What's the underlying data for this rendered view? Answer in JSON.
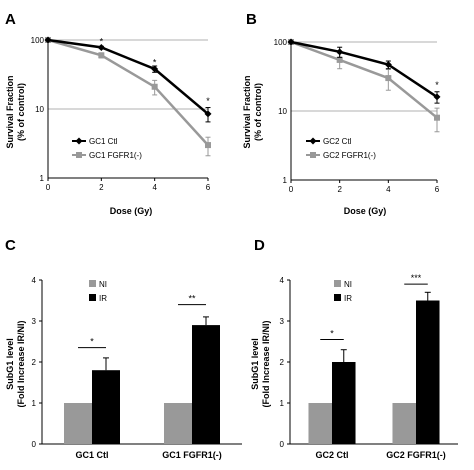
{
  "chart_data": [
    {
      "panel": "A",
      "type": "line",
      "yscale": "log",
      "x": [
        0,
        2,
        4,
        6
      ],
      "xticks": [
        0,
        2,
        4,
        6
      ],
      "xlim": [
        0,
        6
      ],
      "yticks": [
        1,
        10,
        100
      ],
      "ylim": [
        1,
        100
      ],
      "xlabel": "Dose (Gy)",
      "ylabel_line1": "Survival Fraction",
      "ylabel_line2": "(% of control)",
      "legend_position": "bottom-left",
      "series": [
        {
          "name": "GC1 Ctl",
          "color": "#000000",
          "marker": "diamond",
          "values": [
            100,
            78,
            38,
            8.5
          ],
          "errors": [
            0,
            3,
            4,
            2
          ]
        },
        {
          "name": "GC1 FGFR1(-)",
          "color": "#999999",
          "marker": "square",
          "values": [
            100,
            60,
            21,
            3.0
          ],
          "errors": [
            0,
            5,
            5,
            0.9
          ]
        }
      ],
      "annotations": [
        {
          "x": 2,
          "y": 95,
          "text": "*"
        },
        {
          "x": 4,
          "y": 47,
          "text": "*"
        },
        {
          "x": 6,
          "y": 13,
          "text": "*"
        }
      ]
    },
    {
      "panel": "B",
      "type": "line",
      "yscale": "log",
      "x": [
        0,
        2,
        4,
        6
      ],
      "xticks": [
        0,
        2,
        4,
        6
      ],
      "xlim": [
        0,
        6
      ],
      "yticks": [
        1,
        10,
        100
      ],
      "ylim": [
        1,
        100
      ],
      "xlabel": "Dose (Gy)",
      "ylabel_line1": "Survival Fraction",
      "ylabel_line2": "(% of control)",
      "legend_position": "bottom-left",
      "series": [
        {
          "name": "GC2 Ctl",
          "color": "#000000",
          "marker": "diamond",
          "values": [
            100,
            72,
            47,
            16
          ],
          "errors": [
            0,
            12,
            6,
            3
          ]
        },
        {
          "name": "GC2 FGFR1(-)",
          "color": "#999999",
          "marker": "square",
          "values": [
            100,
            55,
            30,
            8.0
          ],
          "errors": [
            0,
            14,
            10,
            3
          ]
        }
      ],
      "annotations": [
        {
          "x": 6,
          "y": 24,
          "text": "*"
        }
      ]
    },
    {
      "panel": "C",
      "type": "bar",
      "categories": [
        "GC1 Ctl",
        "GC1 FGFR1(-)"
      ],
      "yticks": [
        0,
        1,
        2,
        3,
        4
      ],
      "ylim": [
        0,
        4
      ],
      "ylabel_line1": "SubG1 level",
      "ylabel_line2": "(Fold Increase IR/NI)",
      "legend_position": "top-left",
      "series": [
        {
          "name": "NI",
          "color": "#999999",
          "values": [
            1.0,
            1.0
          ],
          "errors": [
            0,
            0
          ]
        },
        {
          "name": "IR",
          "color": "#000000",
          "values": [
            1.8,
            2.9
          ],
          "errors": [
            0.3,
            0.2
          ]
        }
      ],
      "annotations": [
        {
          "category": 0,
          "y": 2.35,
          "text": "*"
        },
        {
          "category": 1,
          "y": 3.4,
          "text": "**"
        }
      ]
    },
    {
      "panel": "D",
      "type": "bar",
      "categories": [
        "GC2 Ctl",
        "GC2 FGFR1(-)"
      ],
      "yticks": [
        0,
        1,
        2,
        3,
        4
      ],
      "ylim": [
        0,
        4
      ],
      "ylabel_line1": "SubG1 level",
      "ylabel_line2": "(Fold Increase IR/NI)",
      "legend_position": "top-left",
      "series": [
        {
          "name": "NI",
          "color": "#999999",
          "values": [
            1.0,
            1.0
          ],
          "errors": [
            0,
            0
          ]
        },
        {
          "name": "IR",
          "color": "#000000",
          "values": [
            2.0,
            3.5
          ],
          "errors": [
            0.3,
            0.2
          ]
        }
      ],
      "annotations": [
        {
          "category": 0,
          "y": 2.55,
          "text": "*"
        },
        {
          "category": 1,
          "y": 3.9,
          "text": "***"
        }
      ]
    }
  ]
}
